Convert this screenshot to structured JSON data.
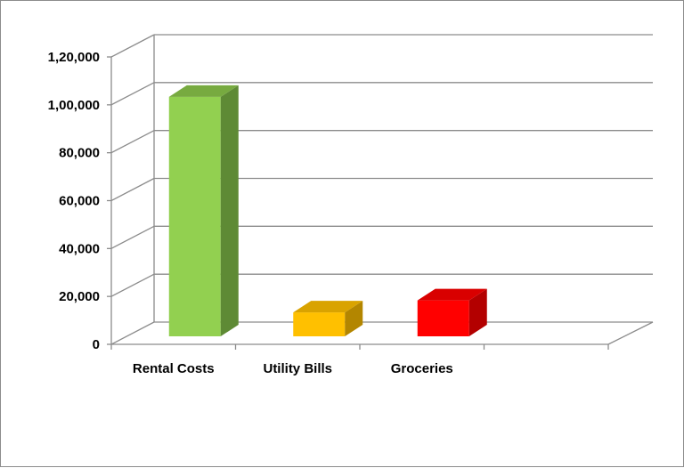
{
  "chart_data": {
    "type": "bar",
    "style": "3d-column",
    "categories": [
      "Rental Costs",
      "Utility Bills",
      "Groceries"
    ],
    "values": [
      100000,
      10000,
      15000
    ],
    "colors": [
      "#92d050",
      "#ffc000",
      "#ff0000"
    ],
    "side_colors": [
      "#5e8a35",
      "#b38600",
      "#b30000"
    ],
    "top_colors": [
      "#77aa40",
      "#d9a300",
      "#d90000"
    ],
    "ylim": [
      0,
      120000
    ],
    "yticks": [
      0,
      20000,
      40000,
      60000,
      80000,
      100000,
      120000
    ],
    "ytick_labels": [
      "0",
      "20,000",
      "40,000",
      "60,000",
      "80,000",
      "1,00,000",
      "1,20,000"
    ],
    "title": "",
    "xlabel": "",
    "ylabel": "",
    "grid": true,
    "legend": "none"
  }
}
